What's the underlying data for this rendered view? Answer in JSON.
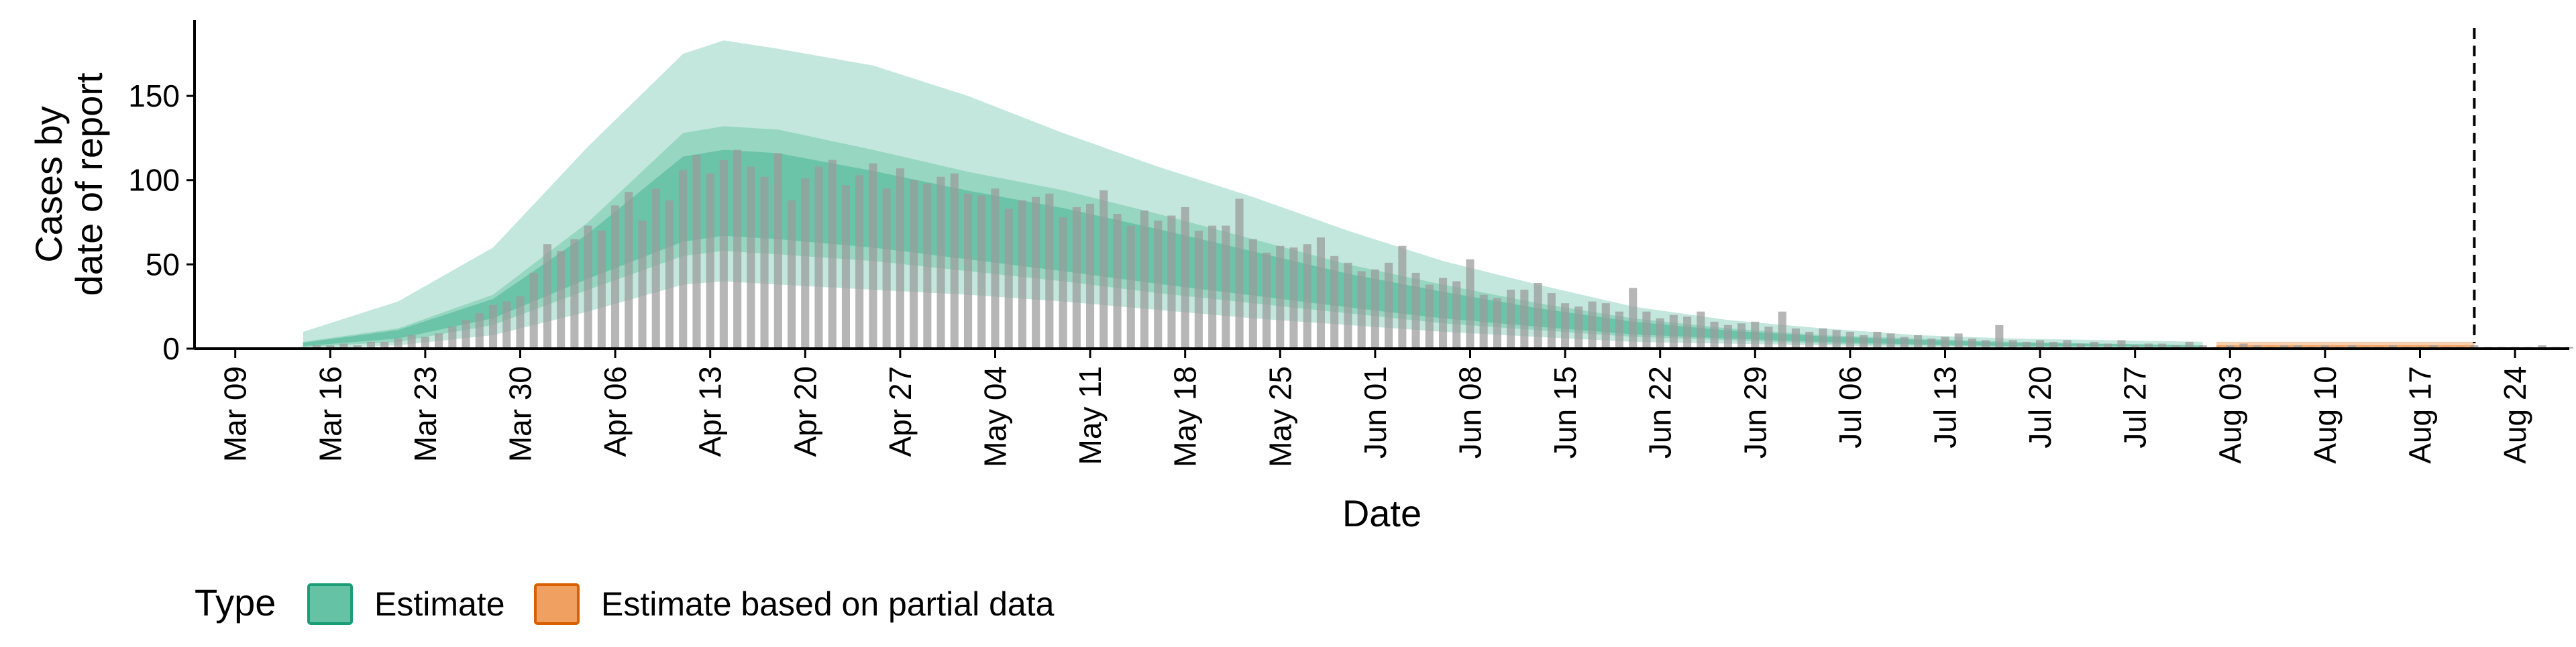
{
  "chart_data": {
    "type": "bar",
    "title": "",
    "xlabel": "Date",
    "ylabel": [
      "Cases by",
      "date of report"
    ],
    "ylim": [
      0,
      195
    ],
    "yticks": [
      0,
      50,
      100,
      150
    ],
    "x_domain": [
      "2020-03-06",
      "2020-08-28"
    ],
    "xticks": [
      {
        "date": "2020-03-09",
        "label": "Mar 09"
      },
      {
        "date": "2020-03-16",
        "label": "Mar 16"
      },
      {
        "date": "2020-03-23",
        "label": "Mar 23"
      },
      {
        "date": "2020-03-30",
        "label": "Mar 30"
      },
      {
        "date": "2020-04-06",
        "label": "Apr 06"
      },
      {
        "date": "2020-04-13",
        "label": "Apr 13"
      },
      {
        "date": "2020-04-20",
        "label": "Apr 20"
      },
      {
        "date": "2020-04-27",
        "label": "Apr 27"
      },
      {
        "date": "2020-05-04",
        "label": "May 04"
      },
      {
        "date": "2020-05-11",
        "label": "May 11"
      },
      {
        "date": "2020-05-18",
        "label": "May 18"
      },
      {
        "date": "2020-05-25",
        "label": "May 25"
      },
      {
        "date": "2020-06-01",
        "label": "Jun 01"
      },
      {
        "date": "2020-06-08",
        "label": "Jun 08"
      },
      {
        "date": "2020-06-15",
        "label": "Jun 15"
      },
      {
        "date": "2020-06-22",
        "label": "Jun 22"
      },
      {
        "date": "2020-06-29",
        "label": "Jun 29"
      },
      {
        "date": "2020-07-06",
        "label": "Jul 06"
      },
      {
        "date": "2020-07-13",
        "label": "Jul 13"
      },
      {
        "date": "2020-07-20",
        "label": "Jul 20"
      },
      {
        "date": "2020-07-27",
        "label": "Jul 27"
      },
      {
        "date": "2020-08-03",
        "label": "Aug 03"
      },
      {
        "date": "2020-08-10",
        "label": "Aug 10"
      },
      {
        "date": "2020-08-17",
        "label": "Aug 17"
      },
      {
        "date": "2020-08-24",
        "label": "Aug 24"
      }
    ],
    "reference_line_date": "2020-08-21",
    "grid": false,
    "legend": {
      "position": "bottom-left",
      "title": "Type",
      "entries": [
        {
          "label": "Estimate",
          "fill": "#66c2a5",
          "stroke": "#1b9e77"
        },
        {
          "label": "Estimate based on partial data",
          "fill": "#f0a162",
          "stroke": "#d95f02"
        }
      ]
    },
    "colors": {
      "estimate_outer": "#c3e7dc",
      "estimate_mid": "#8fd2bb",
      "estimate_inner": "#66c2a5",
      "estimate_median": "#3aa37f",
      "partial_outer": "#f8cfac",
      "partial_inner": "#f0a162",
      "bars": "#9a9a9a",
      "reference_line": "#000000"
    },
    "reported_cases": {
      "start_date": "2020-03-14",
      "values": [
        1,
        2,
        2,
        3,
        2,
        4,
        4,
        6,
        8,
        7,
        9,
        13,
        17,
        21,
        26,
        28,
        31,
        45,
        62,
        58,
        65,
        73,
        70,
        85,
        93,
        76,
        95,
        88,
        106,
        115,
        104,
        112,
        118,
        108,
        102,
        116,
        88,
        101,
        108,
        112,
        97,
        103,
        110,
        95,
        107,
        100,
        98,
        102,
        104,
        92,
        91,
        95,
        83,
        88,
        90,
        92,
        78,
        84,
        86,
        94,
        80,
        73,
        82,
        76,
        79,
        84,
        70,
        73,
        73,
        89,
        65,
        57,
        61,
        60,
        62,
        66,
        55,
        51,
        46,
        47,
        51,
        61,
        45,
        38,
        42,
        40,
        53,
        32,
        30,
        35,
        35,
        39,
        33,
        27,
        25,
        28,
        27,
        22,
        36,
        22,
        18,
        20,
        19,
        22,
        16,
        14,
        15,
        16,
        13,
        22,
        12,
        10,
        12,
        11,
        10,
        8,
        10,
        9,
        7,
        8,
        6,
        7,
        9,
        6,
        5,
        14,
        5,
        4,
        5,
        4,
        5,
        3,
        4,
        3,
        5,
        2,
        3,
        3,
        2,
        4,
        2,
        1,
        2,
        3,
        2,
        1,
        2,
        2,
        1,
        2,
        1,
        2,
        1,
        1,
        2,
        1,
        1,
        2,
        1,
        1,
        2,
        1,
        1,
        1,
        1,
        2,
        1,
        1,
        1,
        1,
        1
      ]
    },
    "estimate": {
      "start_date": "2020-03-14",
      "end_date": "2020-08-01",
      "dates": [
        "2020-03-14",
        "2020-03-21",
        "2020-03-28",
        "2020-04-04",
        "2020-04-11",
        "2020-04-14",
        "2020-04-18",
        "2020-04-25",
        "2020-05-02",
        "2020-05-09",
        "2020-05-16",
        "2020-05-23",
        "2020-05-30",
        "2020-06-06",
        "2020-06-13",
        "2020-06-20",
        "2020-06-27",
        "2020-07-04",
        "2020-07-11",
        "2020-07-18",
        "2020-07-25",
        "2020-08-01"
      ],
      "median": [
        2,
        8,
        22,
        48,
        72,
        76,
        74,
        68,
        60,
        52,
        44,
        36,
        28,
        21,
        15,
        10,
        7,
        5,
        3,
        2,
        2,
        1
      ],
      "inner_lower": [
        1,
        4,
        14,
        35,
        55,
        58,
        56,
        52,
        46,
        40,
        33,
        27,
        21,
        15,
        11,
        7,
        5,
        3,
        2,
        1,
        1,
        1
      ],
      "inner_upper": [
        4,
        12,
        32,
        75,
        128,
        132,
        130,
        118,
        105,
        94,
        80,
        65,
        50,
        38,
        27,
        18,
        12,
        8,
        6,
        4,
        3,
        2
      ],
      "outer_lower": [
        0,
        2,
        8,
        22,
        38,
        40,
        38,
        35,
        32,
        28,
        23,
        18,
        14,
        10,
        7,
        4,
        3,
        2,
        1,
        1,
        0,
        0
      ],
      "outer_upper": [
        10,
        28,
        60,
        120,
        175,
        183,
        178,
        168,
        150,
        128,
        108,
        90,
        70,
        52,
        38,
        25,
        17,
        12,
        8,
        6,
        5,
        4
      ]
    },
    "partial_estimate": {
      "start_date": "2020-08-02",
      "end_date": "2020-08-21",
      "lower": [
        0,
        0
      ],
      "inner_lower": [
        1,
        1
      ],
      "inner_upper": [
        2,
        2
      ],
      "upper": [
        4,
        4
      ]
    }
  }
}
